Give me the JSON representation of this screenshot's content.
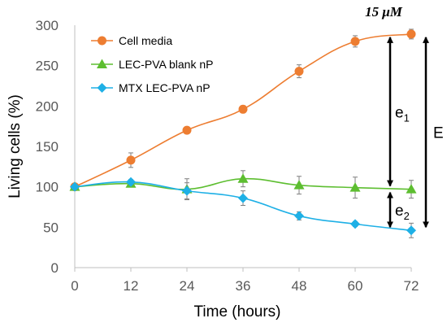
{
  "chart_data": {
    "type": "line",
    "title": "",
    "xlabel": "Time (hours)",
    "ylabel": "Living cells (%)",
    "xlim": [
      0,
      72
    ],
    "ylim": [
      0,
      300
    ],
    "x_ticks": [
      0,
      12,
      24,
      36,
      48,
      60,
      72
    ],
    "y_ticks": [
      0,
      50,
      100,
      150,
      200,
      250,
      300
    ],
    "grid": false,
    "legend_position": "top-left",
    "concentration_label": "15 μM",
    "series": [
      {
        "name": "Cell media",
        "color": "#ED7D31",
        "marker": "circle",
        "x": [
          0,
          12,
          24,
          36,
          48,
          60,
          72
        ],
        "y": [
          100,
          133,
          170,
          196,
          243,
          280,
          289
        ],
        "error": [
          3,
          9,
          3,
          4,
          8,
          7,
          6
        ]
      },
      {
        "name": "LEC-PVA blank nP",
        "color": "#5DBE30",
        "marker": "triangle",
        "x": [
          0,
          12,
          24,
          36,
          48,
          60,
          72
        ],
        "y": [
          100,
          104,
          97,
          110,
          102,
          99,
          97
        ],
        "error": [
          3,
          4,
          13,
          10,
          11,
          13,
          11
        ]
      },
      {
        "name": "MTX LEC-PVA nP",
        "color": "#1EB0E6",
        "marker": "diamond",
        "x": [
          0,
          12,
          24,
          36,
          48,
          60,
          72
        ],
        "y": [
          100,
          106,
          95,
          86,
          64,
          54,
          46
        ],
        "error": [
          3,
          3,
          10,
          9,
          5,
          3,
          9
        ]
      }
    ],
    "annotations": [
      {
        "label": "e",
        "subscript": "1",
        "from_y": 289,
        "to_y": 97
      },
      {
        "label": "e",
        "subscript": "2",
        "from_y": 97,
        "to_y": 46
      },
      {
        "label": "E",
        "subscript": "",
        "from_y": 289,
        "to_y": 46
      }
    ]
  }
}
